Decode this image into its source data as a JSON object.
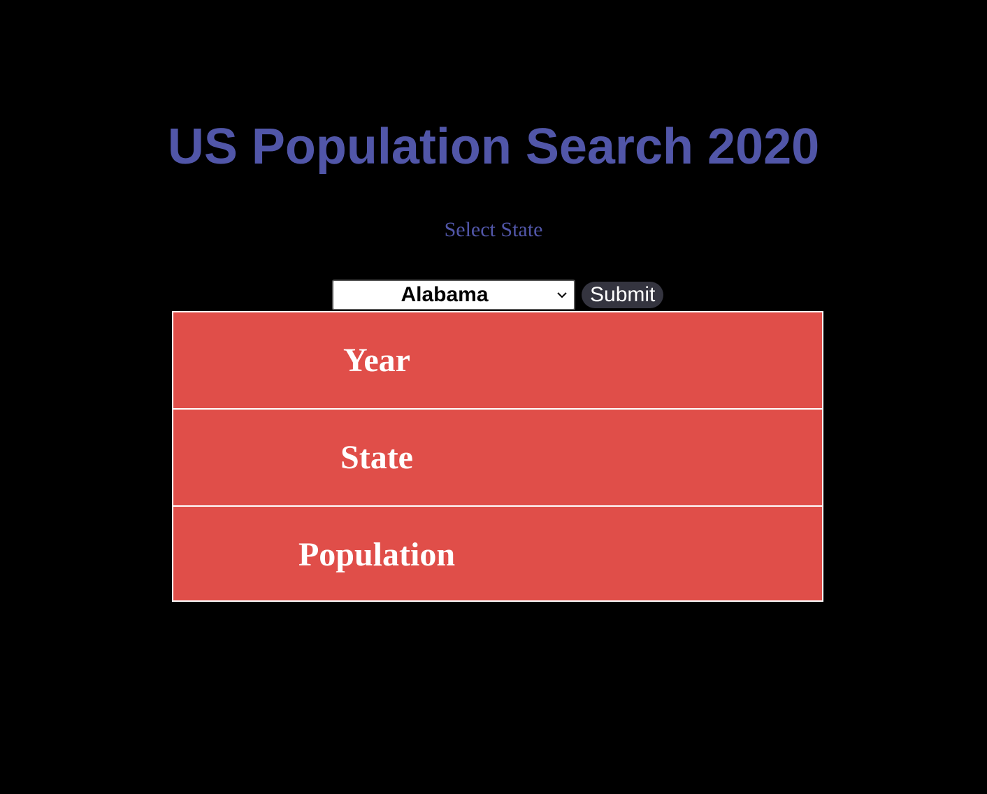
{
  "page": {
    "title": "US Population Search 2020",
    "select_label": "Select State"
  },
  "controls": {
    "state_select": {
      "selected": "Alabama"
    },
    "submit_label": "Submit"
  },
  "results_table": {
    "rows": [
      {
        "label": "Year",
        "value": ""
      },
      {
        "label": "State",
        "value": ""
      },
      {
        "label": "Population",
        "value": ""
      }
    ]
  },
  "colors": {
    "background": "#000000",
    "title": "#5156A8",
    "table_fill": "#E04E49",
    "table_border": "#ffffff",
    "submit_bg": "#34343F"
  }
}
